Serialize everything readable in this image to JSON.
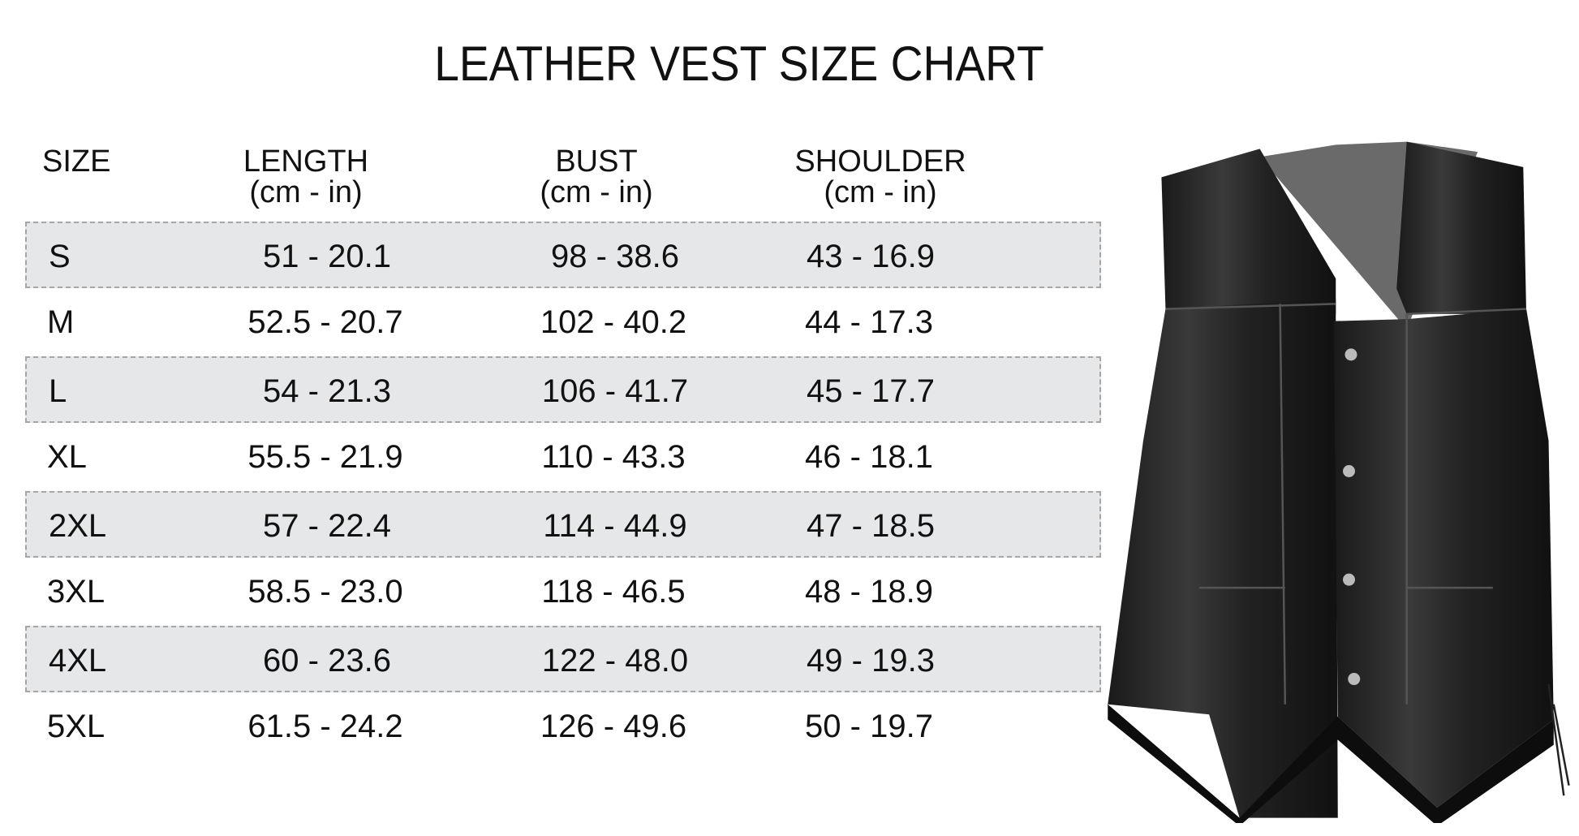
{
  "title": "LEATHER VEST SIZE CHART",
  "headers": [
    {
      "label": "SIZE",
      "unit": ""
    },
    {
      "label": "LENGTH",
      "unit": "(cm - in)"
    },
    {
      "label": "BUST",
      "unit": "(cm - in)"
    },
    {
      "label": "SHOULDER",
      "unit": "(cm - in)"
    }
  ],
  "rows": [
    [
      "S",
      "51 - 20.1",
      "98 - 38.6",
      "43 - 16.9"
    ],
    [
      "M",
      "52.5 - 20.7",
      "102 - 40.2",
      "44 - 17.3"
    ],
    [
      "L",
      "54 - 21.3",
      "106 - 41.7",
      "45 - 17.7"
    ],
    [
      "XL",
      "55.5 - 21.9",
      "110 - 43.3",
      "46 - 18.1"
    ],
    [
      "2XL",
      "57 - 22.4",
      "114 - 44.9",
      "47 - 18.5"
    ],
    [
      "3XL",
      "58.5 - 23.0",
      "118 - 46.5",
      "48 - 18.9"
    ],
    [
      "4XL",
      "60 - 23.6",
      "122 - 48.0",
      "49 - 19.3"
    ],
    [
      "5XL",
      "61.5 - 24.2",
      "126 - 49.6",
      "50 - 19.7"
    ]
  ],
  "colors": {
    "shade": "#e6e7e8",
    "border": "#a6a6a6",
    "text": "#111111"
  },
  "image": "black-leather-vest-photo"
}
